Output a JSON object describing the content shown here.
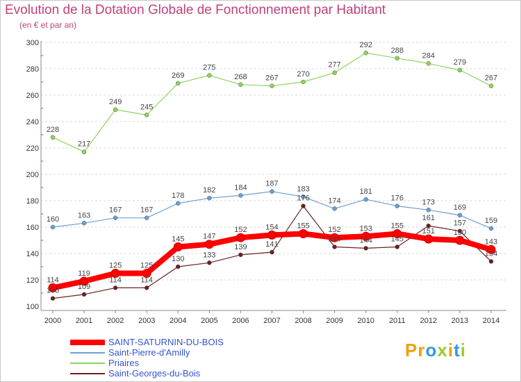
{
  "header": {
    "title": "Evolution de la Dotation Globale de Fonctionnement par Habitant",
    "subtitle": "(en € et par an)"
  },
  "chart_data": {
    "type": "line",
    "title": "Evolution de la Dotation Globale de Fonctionnement par Habitant",
    "subtitle": "(en € et par an)",
    "xlabel": "",
    "ylabel": "",
    "ylim": [
      100,
      300
    ],
    "yticks": [
      100,
      120,
      140,
      160,
      180,
      200,
      220,
      240,
      260,
      280,
      300
    ],
    "grid": true,
    "legend_position": "bottom-left",
    "categories": [
      "2000",
      "2001",
      "2002",
      "2003",
      "2004",
      "2005",
      "2006",
      "2007",
      "2008",
      "2009",
      "2010",
      "2011",
      "2012",
      "2013",
      "2014"
    ],
    "series": [
      {
        "name": "Saint-Georges-du-Bois",
        "color": "#6b2020",
        "values": [
          106,
          109,
          114,
          114,
          130,
          133,
          139,
          141,
          176,
          145,
          144,
          145,
          161,
          157,
          134
        ],
        "labels": [
          "106",
          "109",
          "114",
          "114",
          "130",
          "133",
          "139",
          "141",
          "176",
          "145",
          "144",
          "145",
          "161",
          "157",
          "134"
        ]
      },
      {
        "name": "Priaires",
        "color": "#8ed45a",
        "values": [
          228,
          217,
          249,
          245,
          269,
          275,
          268,
          267,
          270,
          277,
          292,
          288,
          284,
          279,
          267
        ],
        "labels": [
          "228",
          "217",
          "249",
          "245",
          "269",
          "275",
          "268",
          "267",
          "270",
          "277",
          "292",
          "288",
          "284",
          "279",
          "267"
        ]
      },
      {
        "name": "Saint-Pierre-d'Amilly",
        "color": "#6aa0d2",
        "values": [
          160,
          163,
          167,
          167,
          178,
          182,
          184,
          187,
          183,
          174,
          181,
          176,
          173,
          169,
          159
        ],
        "labels": [
          "160",
          "163",
          "167",
          "167",
          "178",
          "182",
          "184",
          "187",
          "183",
          "174",
          "181",
          "176",
          "173",
          "169",
          "159"
        ]
      },
      {
        "name": "SAINT-SATURNIN-DU-BOIS",
        "color": "#ff0000",
        "values": [
          114,
          119,
          125,
          125,
          145,
          147,
          152,
          154,
          155,
          152,
          153,
          155,
          151,
          150,
          143
        ],
        "labels": [
          "114",
          "119",
          "125",
          "125",
          "145",
          "147",
          "152",
          "154",
          "155",
          "152",
          "153",
          "155",
          "151",
          "150",
          "143"
        ]
      }
    ]
  },
  "legend": {
    "items": [
      {
        "name": "SAINT-SATURNIN-DU-BOIS",
        "color": "#ff0000"
      },
      {
        "name": "Saint-Pierre-d'Amilly",
        "color": "#6aa0d2"
      },
      {
        "name": "Priaires",
        "color": "#8ed45a"
      },
      {
        "name": "Saint-Georges-du-Bois",
        "color": "#6b2020"
      }
    ]
  },
  "logo": {
    "text": "Proxiti",
    "colors": [
      "#f0a010",
      "#3399dd",
      "#99cc33"
    ]
  }
}
